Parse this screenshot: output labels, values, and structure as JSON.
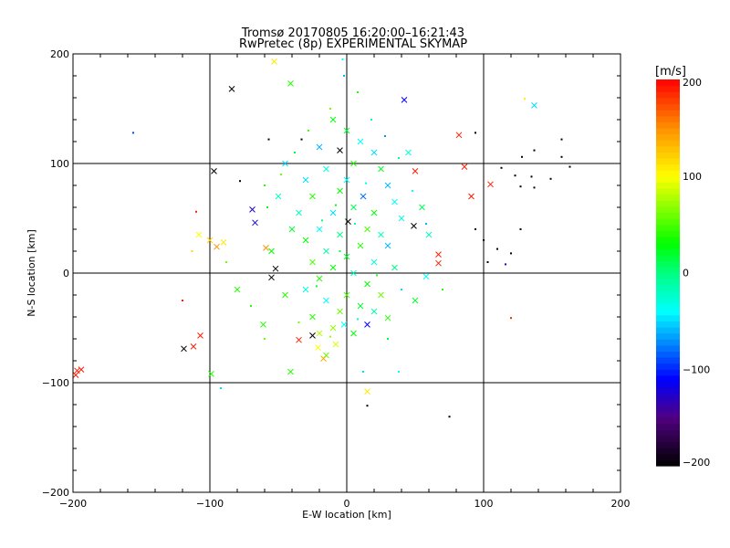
{
  "chart_data": {
    "type": "scatter",
    "title": "Tromsø 20170805 16:20:00–16:21:43",
    "subtitle": "RwPretec (8p) EXPERIMENTAL SKYMAP",
    "xlabel": "E-W location [km]",
    "ylabel": "N-S location [km]",
    "xlim": [
      -200,
      200
    ],
    "ylim": [
      -200,
      200
    ],
    "xticks": [
      "−200",
      "−100",
      "0",
      "100",
      "200"
    ],
    "xtick_values": [
      -200,
      -100,
      0,
      100,
      200
    ],
    "yticks": [
      "−200",
      "−100",
      "0",
      "100",
      "200"
    ],
    "ytick_values": [
      -200,
      -100,
      0,
      100,
      200
    ],
    "grid": true,
    "colorbar": {
      "label": "[m/s]",
      "range": [
        -200,
        200
      ],
      "ticks": [
        "−200",
        "−100",
        "0",
        "100",
        "200"
      ],
      "tick_values": [
        -200,
        -100,
        0,
        100,
        200
      ],
      "stops": [
        {
          "v": -200,
          "color": "#000000"
        },
        {
          "v": -150,
          "color": "#500080"
        },
        {
          "v": -110,
          "color": "#0000ff"
        },
        {
          "v": -40,
          "color": "#00ffff"
        },
        {
          "v": 0,
          "color": "#00ff80"
        },
        {
          "v": 30,
          "color": "#00ff00"
        },
        {
          "v": 100,
          "color": "#ffff00"
        },
        {
          "v": 150,
          "color": "#ff9000"
        },
        {
          "v": 200,
          "color": "#ff0000"
        }
      ]
    },
    "marker_legend": {
      "x": "cross",
      ".": "dot"
    },
    "points": [
      [
        -84,
        168,
        -200,
        "x"
      ],
      [
        -97,
        93,
        -200,
        "x"
      ],
      [
        -5,
        112,
        -200,
        "x"
      ],
      [
        1,
        47,
        -200,
        "x"
      ],
      [
        42,
        158,
        -110,
        "x"
      ],
      [
        137,
        153,
        -50,
        "x"
      ],
      [
        82,
        126,
        190,
        "x"
      ],
      [
        94,
        128,
        -200,
        "."
      ],
      [
        86,
        97,
        190,
        "x"
      ],
      [
        105,
        81,
        190,
        "x"
      ],
      [
        91,
        70,
        190,
        "x"
      ],
      [
        67,
        17,
        190,
        "x"
      ],
      [
        67,
        9,
        190,
        "x"
      ],
      [
        49,
        43,
        -200,
        "x"
      ],
      [
        -55,
        -4,
        -200,
        "x"
      ],
      [
        -52,
        4,
        -200,
        "x"
      ],
      [
        -119,
        -69,
        -200,
        "x"
      ],
      [
        -112,
        -67,
        190,
        "x"
      ],
      [
        -107,
        -57,
        190,
        "x"
      ],
      [
        -197,
        -89,
        190,
        "x"
      ],
      [
        -194,
        -88,
        190,
        "x"
      ],
      [
        -198,
        -93,
        190,
        "x"
      ],
      [
        -156,
        128,
        -90,
        "."
      ],
      [
        -53,
        193,
        110,
        "x"
      ],
      [
        130,
        159,
        110,
        "."
      ],
      [
        -99,
        -92,
        40,
        "x"
      ],
      [
        15,
        -108,
        110,
        "x"
      ],
      [
        15,
        -121,
        -200,
        "."
      ],
      [
        75,
        -131,
        -200,
        "."
      ],
      [
        120,
        -41,
        190,
        "."
      ],
      [
        -67,
        46,
        -120,
        "x"
      ],
      [
        -69,
        58,
        -130,
        "x"
      ],
      [
        -90,
        28,
        110,
        "x"
      ],
      [
        -59,
        23,
        150,
        "x"
      ],
      [
        -41,
        173,
        40,
        "x"
      ],
      [
        -80,
        -15,
        40,
        "x"
      ],
      [
        -61,
        -47,
        40,
        "x"
      ],
      [
        -41,
        -90,
        40,
        "x"
      ],
      [
        -35,
        -61,
        190,
        "x"
      ],
      [
        -25,
        -57,
        -200,
        "x"
      ],
      [
        -17,
        -78,
        140,
        "x"
      ],
      [
        -21,
        -68,
        100,
        "x"
      ],
      [
        58,
        -3,
        -40,
        "x"
      ],
      [
        30,
        -41,
        40,
        "x"
      ],
      [
        -2,
        -47,
        -40,
        "x"
      ],
      [
        15,
        -47,
        -110,
        "x"
      ],
      [
        50,
        93,
        190,
        "x"
      ],
      [
        113,
        96,
        -200,
        "."
      ],
      [
        123,
        89,
        -200,
        "."
      ],
      [
        127,
        79,
        -200,
        "."
      ],
      [
        135,
        88,
        -200,
        "."
      ],
      [
        137,
        78,
        -200,
        "."
      ],
      [
        149,
        86,
        -200,
        "."
      ],
      [
        157,
        122,
        -200,
        "."
      ],
      [
        163,
        97,
        -200,
        "."
      ],
      [
        137,
        112,
        -200,
        "."
      ],
      [
        128,
        106,
        -200,
        "."
      ],
      [
        157,
        106,
        -200,
        "."
      ],
      [
        100,
        30,
        -200,
        "."
      ],
      [
        110,
        22,
        -200,
        "."
      ],
      [
        120,
        18,
        -200,
        "."
      ],
      [
        103,
        10,
        -200,
        "."
      ],
      [
        116,
        8,
        -130,
        "."
      ],
      [
        94,
        40,
        -200,
        "."
      ],
      [
        127,
        40,
        -200,
        "."
      ],
      [
        -78,
        84,
        -200,
        "."
      ],
      [
        -33,
        122,
        -200,
        "."
      ],
      [
        -57,
        122,
        -200,
        "."
      ],
      [
        -110,
        56,
        190,
        "."
      ],
      [
        -120,
        -25,
        190,
        "."
      ],
      [
        -100,
        30,
        120,
        "x"
      ],
      [
        -108,
        35,
        100,
        "x"
      ],
      [
        -95,
        24,
        150,
        "x"
      ],
      [
        -113,
        20,
        120,
        "."
      ],
      [
        -88,
        10,
        60,
        "."
      ],
      [
        0,
        130,
        20,
        "x"
      ],
      [
        -10,
        140,
        30,
        "x"
      ],
      [
        10,
        120,
        -40,
        "x"
      ],
      [
        20,
        110,
        -50,
        "x"
      ],
      [
        -20,
        115,
        -60,
        "x"
      ],
      [
        5,
        100,
        40,
        "x"
      ],
      [
        -15,
        95,
        -30,
        "x"
      ],
      [
        25,
        95,
        20,
        "x"
      ],
      [
        -30,
        85,
        -50,
        "x"
      ],
      [
        30,
        80,
        -60,
        "x"
      ],
      [
        0,
        85,
        -40,
        "x"
      ],
      [
        -5,
        75,
        30,
        "x"
      ],
      [
        12,
        70,
        -80,
        "x"
      ],
      [
        -25,
        70,
        40,
        "x"
      ],
      [
        35,
        65,
        -40,
        "x"
      ],
      [
        -35,
        55,
        -20,
        "x"
      ],
      [
        20,
        55,
        30,
        "x"
      ],
      [
        -10,
        55,
        -50,
        "x"
      ],
      [
        5,
        60,
        10,
        "x"
      ],
      [
        40,
        50,
        -30,
        "x"
      ],
      [
        -40,
        40,
        20,
        "x"
      ],
      [
        -20,
        40,
        -40,
        "x"
      ],
      [
        15,
        40,
        50,
        "x"
      ],
      [
        25,
        35,
        -20,
        "x"
      ],
      [
        -5,
        35,
        0,
        "x"
      ],
      [
        -30,
        30,
        30,
        "x"
      ],
      [
        30,
        25,
        -60,
        "x"
      ],
      [
        10,
        25,
        40,
        "x"
      ],
      [
        -15,
        20,
        -10,
        "x"
      ],
      [
        0,
        15,
        20,
        "x"
      ],
      [
        -25,
        10,
        50,
        "x"
      ],
      [
        20,
        10,
        -30,
        "x"
      ],
      [
        35,
        5,
        0,
        "x"
      ],
      [
        -10,
        5,
        30,
        "x"
      ],
      [
        5,
        0,
        -20,
        "x"
      ],
      [
        -20,
        -5,
        40,
        "x"
      ],
      [
        15,
        -10,
        30,
        "x"
      ],
      [
        -30,
        -15,
        -30,
        "x"
      ],
      [
        0,
        -20,
        50,
        "x"
      ],
      [
        25,
        -20,
        60,
        "x"
      ],
      [
        -15,
        -25,
        -40,
        "x"
      ],
      [
        10,
        -30,
        20,
        "x"
      ],
      [
        -5,
        -35,
        60,
        "x"
      ],
      [
        -25,
        -40,
        40,
        "x"
      ],
      [
        20,
        -35,
        -10,
        "x"
      ],
      [
        -10,
        -50,
        70,
        "x"
      ],
      [
        5,
        -55,
        30,
        "x"
      ],
      [
        -20,
        -55,
        80,
        "x"
      ],
      [
        -8,
        -65,
        90,
        "x"
      ],
      [
        -15,
        -75,
        60,
        "x"
      ],
      [
        -45,
        100,
        -50,
        "x"
      ],
      [
        45,
        110,
        -30,
        "x"
      ],
      [
        -50,
        70,
        -20,
        "x"
      ],
      [
        55,
        60,
        10,
        "x"
      ],
      [
        -55,
        20,
        30,
        "x"
      ],
      [
        60,
        35,
        -20,
        "x"
      ],
      [
        -45,
        -20,
        40,
        "x"
      ],
      [
        50,
        -25,
        20,
        "x"
      ],
      [
        -2,
        180,
        -60,
        "."
      ],
      [
        8,
        165,
        40,
        "."
      ],
      [
        -12,
        150,
        60,
        "."
      ],
      [
        18,
        140,
        -20,
        "."
      ],
      [
        -28,
        130,
        50,
        "."
      ],
      [
        28,
        125,
        -70,
        "."
      ],
      [
        -38,
        110,
        20,
        "."
      ],
      [
        38,
        105,
        -10,
        "."
      ],
      [
        -48,
        90,
        60,
        "."
      ],
      [
        48,
        75,
        -40,
        "."
      ],
      [
        -58,
        60,
        30,
        "."
      ],
      [
        58,
        45,
        -60,
        "."
      ],
      [
        -5,
        20,
        10,
        "."
      ],
      [
        6,
        45,
        -20,
        "."
      ],
      [
        -8,
        62,
        30,
        "."
      ],
      [
        14,
        82,
        -30,
        "."
      ],
      [
        -18,
        48,
        0,
        "."
      ],
      [
        22,
        -2,
        40,
        "."
      ],
      [
        -22,
        -12,
        20,
        "."
      ],
      [
        8,
        -42,
        -30,
        "."
      ],
      [
        -12,
        -58,
        70,
        "."
      ],
      [
        30,
        -60,
        20,
        "."
      ],
      [
        -35,
        -45,
        60,
        "."
      ],
      [
        40,
        -15,
        -50,
        "."
      ],
      [
        -3,
        195,
        -40,
        "."
      ],
      [
        12,
        -90,
        -50,
        "."
      ],
      [
        38,
        -90,
        -40,
        "."
      ],
      [
        -92,
        -105,
        -50,
        "."
      ],
      [
        -60,
        -60,
        60,
        "."
      ],
      [
        -70,
        -30,
        40,
        "."
      ],
      [
        -60,
        80,
        40,
        "."
      ],
      [
        70,
        -15,
        40,
        "."
      ]
    ]
  }
}
